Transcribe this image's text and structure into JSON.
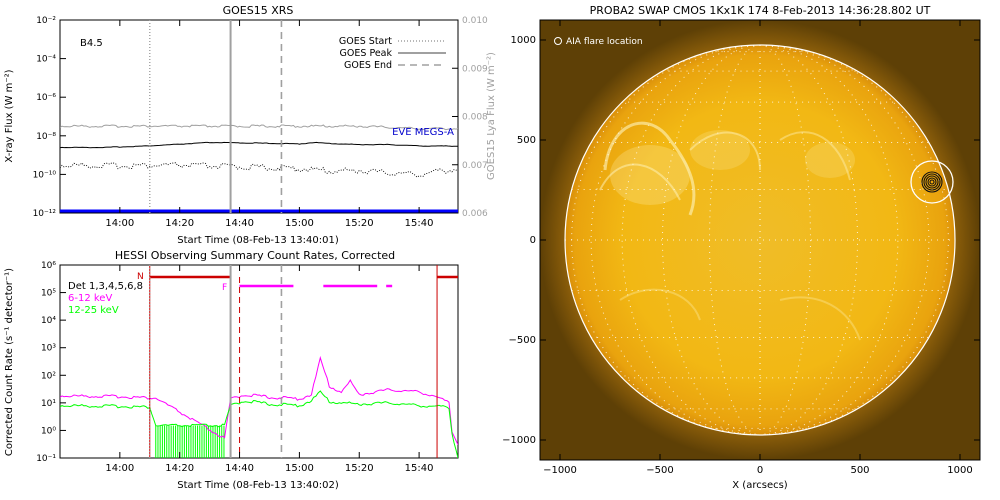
{
  "colors": {
    "black": "#000000",
    "gray": "#a0a0a0",
    "blue": "#0000ff",
    "darkblue": "#0000cc",
    "magenta": "#ff00ff",
    "green": "#00ff00",
    "red": "#cc0000",
    "sun_core": "#f2b814",
    "sun_edge": "#d98f0a",
    "sky": "#7a5408"
  },
  "chart_data": [
    {
      "type": "line",
      "title": "GOES15 XRS",
      "xlabel": "Start Time (08-Feb-13 13:40:01)",
      "ylabel": "X-ray Flux (W m⁻²)",
      "ylabel_right": "GOES15 Lya Flux (W m⁻²)",
      "xlim": [
        "13:40",
        "15:53"
      ],
      "ylim": [
        1e-12,
        0.01
      ],
      "ylim_right": [
        0.006,
        0.01
      ],
      "yscale": "log",
      "x_ticks": [
        "14:00",
        "14:20",
        "14:40",
        "15:00",
        "15:20",
        "15:40"
      ],
      "y_ticks": [
        "10⁻¹²",
        "10⁻¹⁰",
        "10⁻⁸",
        "10⁻⁶",
        "10⁻⁴",
        "10⁻²"
      ],
      "y_ticks_right": [
        "0.006",
        "0.007",
        "0.008",
        "0.009",
        "0.010"
      ],
      "annotation_class": "B4.5",
      "annotation_eve": "EVE MEGS-A",
      "legend": [
        "GOES Start",
        "GOES Peak",
        "GOES End"
      ],
      "legend_position": "top-right",
      "series": [
        {
          "name": "",
          "x": [
            "13:40",
            "13:55",
            "14:10",
            "14:30",
            "14:45",
            "15:00",
            "15:05",
            "15:10",
            "15:20",
            "15:30",
            "15:40",
            "15:53"
          ],
          "values": [
            2.5e-09,
            2.5e-09,
            3e-09,
            4.5e-09,
            4.2e-09,
            3.8e-09,
            4.5e-09,
            4e-09,
            3.5e-09,
            3.5e-09,
            3e-09,
            2.9e-09
          ]
        },
        {
          "name": "",
          "x": [
            "13:40",
            "14:00",
            "14:20",
            "14:40",
            "15:00",
            "15:20",
            "15:40",
            "15:53"
          ],
          "values": [
            0.0078,
            0.0078,
            0.0078,
            0.0078,
            0.0078,
            0.0078,
            0.00775,
            0.00775
          ]
        },
        {
          "name": "",
          "x": [
            "13:40",
            "14:00",
            "14:20",
            "14:40",
            "15:00",
            "15:10",
            "15:20",
            "15:30",
            "15:40",
            "15:53"
          ],
          "values": [
            3e-10,
            2.8e-10,
            3e-10,
            2.5e-10,
            2e-10,
            1.5e-10,
            1.6e-10,
            1.2e-10,
            1e-10,
            2e-10
          ]
        },
        {
          "name": "",
          "x": [
            "13:40",
            "15:53"
          ],
          "values": [
            1e-12,
            1e-12
          ]
        }
      ],
      "markers": {
        "start": "14:10",
        "peak": "14:37",
        "end": "14:54"
      }
    },
    {
      "type": "line",
      "title": "HESSI Observing Summary Count Rates, Corrected",
      "xlabel": "Start Time (08-Feb-13 13:40:02)",
      "ylabel": "Corrected Count Rate (s⁻¹ detector⁻¹)",
      "xlim": [
        "13:40",
        "15:53"
      ],
      "ylim": [
        0.1,
        1000000.0
      ],
      "yscale": "log",
      "x_ticks": [
        "14:00",
        "14:20",
        "14:40",
        "15:00",
        "15:20",
        "15:40"
      ],
      "y_ticks": [
        "10⁻¹",
        "10⁰",
        "10¹",
        "10²",
        "10³",
        "10⁴",
        "10⁵",
        "10⁶"
      ],
      "annotation_det": "Det 1,3,4,5,6,8",
      "annotation_n": "N",
      "annotation_f": "F",
      "series": [
        {
          "name": "6-12 keV",
          "x": [
            "13:40",
            "14:00",
            "14:10",
            "14:12",
            "14:35",
            "14:37",
            "14:42",
            "14:50",
            "15:00",
            "15:04",
            "15:07",
            "15:10",
            "15:14",
            "15:17",
            "15:20",
            "15:30",
            "15:40",
            "15:45",
            "15:50",
            "15:51",
            "15:53"
          ],
          "values": [
            18,
            17,
            15,
            15,
            0.5,
            14,
            20,
            16,
            14,
            20,
            400,
            40,
            25,
            60,
            20,
            30,
            25,
            18,
            10,
            1,
            0.3
          ]
        },
        {
          "name": "12-25 keV",
          "x": [
            "13:40",
            "14:00",
            "14:10",
            "14:12",
            "14:35",
            "14:37",
            "14:42",
            "14:50",
            "15:00",
            "15:04",
            "15:07",
            "15:10",
            "15:20",
            "15:30",
            "15:40",
            "15:50",
            "15:51",
            "15:53"
          ],
          "values": [
            8,
            7.5,
            7,
            1.5,
            1.5,
            8,
            12,
            9,
            8,
            12,
            25,
            11,
            9,
            10,
            8,
            7,
            0.8,
            0.1
          ]
        }
      ],
      "night_markers": [
        "14:10",
        "15:46"
      ],
      "night_bar_segments": [
        [
          "14:10",
          "14:37"
        ],
        [
          "15:46",
          "15:53"
        ]
      ],
      "saa_bar_segments": [
        [
          "14:40",
          "14:58"
        ],
        [
          "15:08",
          "15:26"
        ],
        [
          "15:29",
          "15:31"
        ]
      ],
      "goes_markers": {
        "start": "14:10",
        "peak": "14:37",
        "end": "14:54"
      }
    },
    {
      "type": "heatmap",
      "title": "PROBA2 SWAP CMOS 1Kx1K 174  8-Feb-2013 14:36:28.802 UT",
      "xlabel": "X (arcsecs)",
      "ylabel": "",
      "xlim": [
        -1100,
        1100
      ],
      "ylim": [
        -1100,
        1100
      ],
      "x_ticks": [
        "−1000",
        "−500",
        "0",
        "500",
        "1000"
      ],
      "y_ticks": [
        "−1000",
        "−500",
        "0",
        "500",
        "1000"
      ],
      "legend": [
        "AIA flare location"
      ],
      "legend_position": "top-left",
      "solar_radius_arcsec": 975,
      "flare_location": [
        860,
        290
      ]
    }
  ]
}
